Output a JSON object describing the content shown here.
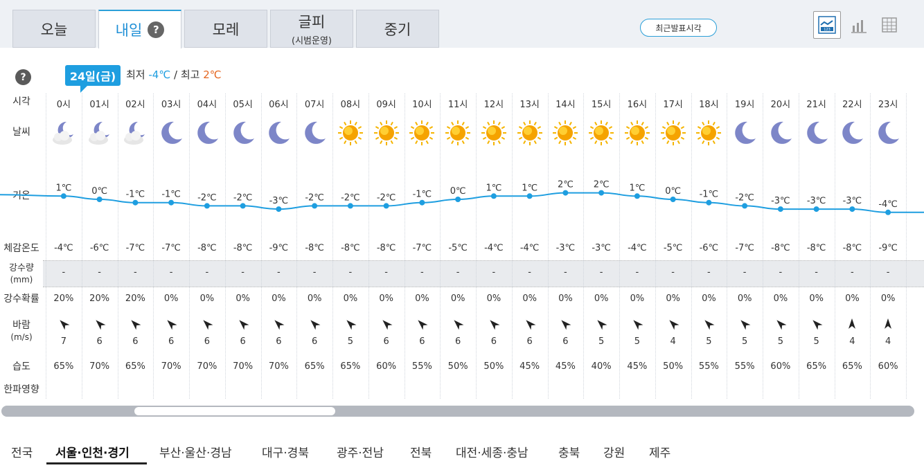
{
  "tabs": [
    {
      "label": "오늘",
      "sub": ""
    },
    {
      "label": "내일",
      "sub": "",
      "active": true
    },
    {
      "label": "모레",
      "sub": ""
    },
    {
      "label": "글피",
      "sub": "(시범운영)"
    },
    {
      "label": "중기",
      "sub": ""
    }
  ],
  "help_symbol": "?",
  "recent_button": "최근발표시각",
  "view_icons": [
    "line-graph-icon",
    "bar-graph-icon",
    "table-grid-icon"
  ],
  "date": {
    "badge": "24일(금)",
    "min_label": "최저",
    "min_value": "-4℃",
    "separator": "/",
    "max_label": "최고",
    "max_value": "2℃"
  },
  "row_labels": {
    "time": "시각",
    "weather": "날씨",
    "temp": "기온",
    "feels": "체감온도",
    "precip_l1": "강수량",
    "precip_l2": "(mm)",
    "pop": "강수확률",
    "wind_l1": "바람",
    "wind_l2": "(m/s)",
    "humidity": "습도",
    "cold": "한파영향"
  },
  "colors": {
    "accent": "#1e9ee0",
    "max_temp": "#e5661f",
    "sun": "#f5a300",
    "moon": "#7d86c8"
  },
  "hours": [
    "0시",
    "01시",
    "02시",
    "03시",
    "04시",
    "05시",
    "06시",
    "07시",
    "08시",
    "09시",
    "10시",
    "11시",
    "12시",
    "13시",
    "14시",
    "15시",
    "16시",
    "17시",
    "18시",
    "19시",
    "20시",
    "21시",
    "22시",
    "23시"
  ],
  "weather_icons": [
    "partly-cloudy-night",
    "partly-cloudy-night",
    "partly-cloudy-night",
    "moon",
    "moon",
    "moon",
    "moon",
    "moon",
    "sun",
    "sun",
    "sun",
    "sun",
    "sun",
    "sun",
    "sun",
    "sun",
    "sun",
    "sun",
    "sun",
    "moon",
    "moon",
    "moon",
    "moon",
    "moon"
  ],
  "temps": [
    1,
    0,
    -1,
    -1,
    -2,
    -2,
    -3,
    -2,
    -2,
    -2,
    -1,
    0,
    1,
    1,
    2,
    2,
    1,
    0,
    -1,
    -2,
    -3,
    -3,
    -3,
    -4
  ],
  "temp_labels": [
    "1℃",
    "0℃",
    "-1℃",
    "-1℃",
    "-2℃",
    "-2℃",
    "-3℃",
    "-2℃",
    "-2℃",
    "-2℃",
    "-1℃",
    "0℃",
    "1℃",
    "1℃",
    "2℃",
    "2℃",
    "1℃",
    "0℃",
    "-1℃",
    "-2℃",
    "-3℃",
    "-3℃",
    "-3℃",
    "-4℃"
  ],
  "feels": [
    "-4℃",
    "-6℃",
    "-7℃",
    "-7℃",
    "-8℃",
    "-8℃",
    "-9℃",
    "-8℃",
    "-8℃",
    "-8℃",
    "-7℃",
    "-5℃",
    "-4℃",
    "-4℃",
    "-3℃",
    "-3℃",
    "-4℃",
    "-5℃",
    "-6℃",
    "-7℃",
    "-8℃",
    "-8℃",
    "-8℃",
    "-9℃"
  ],
  "precip": [
    "-",
    "-",
    "-",
    "-",
    "-",
    "-",
    "-",
    "-",
    "-",
    "-",
    "-",
    "-",
    "-",
    "-",
    "-",
    "-",
    "-",
    "-",
    "-",
    "-",
    "-",
    "-",
    "-",
    "-"
  ],
  "pop": [
    "20%",
    "20%",
    "20%",
    "0%",
    "0%",
    "0%",
    "0%",
    "0%",
    "0%",
    "0%",
    "0%",
    "0%",
    "0%",
    "0%",
    "0%",
    "0%",
    "0%",
    "0%",
    "0%",
    "0%",
    "0%",
    "0%",
    "0%",
    "0%"
  ],
  "wind_dirs": [
    "northeast",
    "northeast",
    "northeast",
    "northeast",
    "northeast",
    "northeast",
    "northeast",
    "northeast",
    "northeast",
    "northeast",
    "northeast",
    "northeast",
    "northeast",
    "northeast",
    "northeast",
    "northeast",
    "northeast",
    "northeast",
    "northeast",
    "northeast",
    "northeast",
    "northeast",
    "north",
    "north"
  ],
  "wind_speeds": [
    "7",
    "6",
    "6",
    "6",
    "6",
    "6",
    "6",
    "6",
    "5",
    "6",
    "6",
    "6",
    "6",
    "6",
    "6",
    "5",
    "5",
    "4",
    "5",
    "5",
    "5",
    "5",
    "4",
    "4"
  ],
  "humidity": [
    "65%",
    "70%",
    "65%",
    "70%",
    "70%",
    "70%",
    "70%",
    "65%",
    "65%",
    "60%",
    "55%",
    "50%",
    "50%",
    "45%",
    "45%",
    "40%",
    "45%",
    "50%",
    "55%",
    "55%",
    "60%",
    "65%",
    "65%",
    "60%"
  ],
  "regions": [
    "전국",
    "서울·인천·경기",
    "부산·울산·경남",
    "대구·경북",
    "광주·전남",
    "전북",
    "대전·세종·충남",
    "충북",
    "강원",
    "제주"
  ],
  "active_region": "서울·인천·경기"
}
